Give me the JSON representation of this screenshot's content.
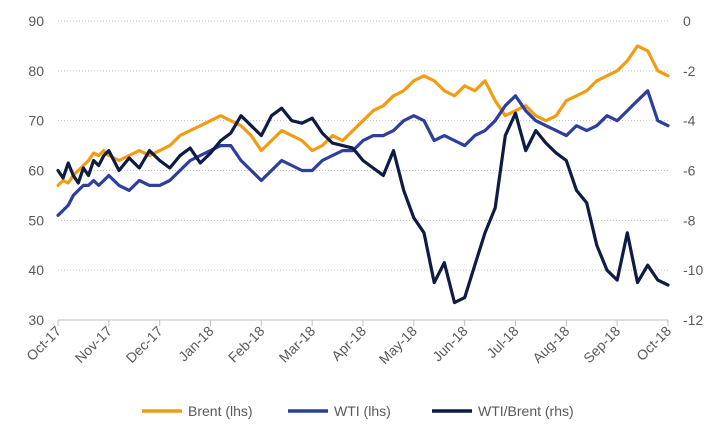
{
  "chart_data": {
    "type": "line",
    "grid": "horizontal dashed",
    "legend_position": "bottom",
    "y_left": {
      "min": 30,
      "max": 90,
      "ticks": [
        "30",
        "40",
        "50",
        "60",
        "70",
        "80",
        "90"
      ]
    },
    "y_right": {
      "min": -12,
      "max": 0,
      "ticks": [
        "-12",
        "-10",
        "-8",
        "-6",
        "-4",
        "-2",
        "0"
      ]
    },
    "x_ticks": [
      "Oct-17",
      "Nov-17",
      "Dec-17",
      "Jan-18",
      "Feb-18",
      "Mar-18",
      "Apr-18",
      "May-18",
      "Jun-18",
      "Jul-18",
      "Aug-18",
      "Sep-18",
      "Oct-18"
    ],
    "series": [
      {
        "name": "Brent (lhs)",
        "axis": "left",
        "color": "#F39C12",
        "x": [
          0,
          0.1,
          0.2,
          0.3,
          0.4,
          0.5,
          0.6,
          0.7,
          0.8,
          0.9,
          1,
          1.2,
          1.4,
          1.6,
          1.8,
          2,
          2.2,
          2.4,
          2.6,
          2.8,
          3,
          3.2,
          3.4,
          3.6,
          3.8,
          4,
          4.2,
          4.4,
          4.6,
          4.8,
          5,
          5.2,
          5.4,
          5.6,
          5.8,
          6,
          6.2,
          6.4,
          6.6,
          6.8,
          7,
          7.2,
          7.4,
          7.6,
          7.8,
          8,
          8.2,
          8.4,
          8.6,
          8.8,
          9,
          9.2,
          9.4,
          9.6,
          9.8,
          10,
          10.2,
          10.4,
          10.6,
          10.8,
          11,
          11.2,
          11.4,
          11.6,
          11.8,
          12
        ],
        "values": [
          57,
          58,
          57.5,
          59,
          60,
          61,
          62,
          63.5,
          63,
          64,
          63,
          62,
          63,
          64,
          63,
          64,
          65,
          67,
          68,
          69,
          70,
          71,
          70,
          69,
          67,
          64,
          66,
          68,
          67,
          66,
          64,
          65,
          67,
          66,
          68,
          70,
          72,
          73,
          75,
          76,
          78,
          79,
          78,
          76,
          75,
          77,
          76,
          78,
          74,
          71,
          72,
          73,
          71,
          70,
          71,
          74,
          75,
          76,
          78,
          79,
          80,
          82,
          85,
          84,
          80,
          79
        ]
      },
      {
        "name": "WTI (lhs)",
        "axis": "left",
        "color": "#2C3E9E",
        "x": [
          0,
          0.1,
          0.2,
          0.3,
          0.4,
          0.5,
          0.6,
          0.7,
          0.8,
          0.9,
          1,
          1.2,
          1.4,
          1.6,
          1.8,
          2,
          2.2,
          2.4,
          2.6,
          2.8,
          3,
          3.2,
          3.4,
          3.6,
          3.8,
          4,
          4.2,
          4.4,
          4.6,
          4.8,
          5,
          5.2,
          5.4,
          5.6,
          5.8,
          6,
          6.2,
          6.4,
          6.6,
          6.8,
          7,
          7.2,
          7.4,
          7.6,
          7.8,
          8,
          8.2,
          8.4,
          8.6,
          8.8,
          9,
          9.2,
          9.4,
          9.6,
          9.8,
          10,
          10.2,
          10.4,
          10.6,
          10.8,
          11,
          11.2,
          11.4,
          11.6,
          11.8,
          12
        ],
        "values": [
          51,
          52,
          53,
          55,
          56,
          57,
          57,
          58,
          57,
          58,
          59,
          57,
          56,
          58,
          57,
          57,
          58,
          60,
          62,
          63,
          64,
          65,
          65,
          62,
          60,
          58,
          60,
          62,
          61,
          60,
          60,
          62,
          63,
          64,
          64,
          66,
          67,
          67,
          68,
          70,
          71,
          70,
          66,
          67,
          66,
          65,
          67,
          68,
          70,
          73,
          75,
          72,
          70,
          69,
          68,
          67,
          69,
          68,
          69,
          71,
          70,
          72,
          74,
          76,
          70,
          69
        ]
      },
      {
        "name": "WTI/Brent (rhs)",
        "axis": "right",
        "color": "#0F1B45",
        "x": [
          0,
          0.1,
          0.2,
          0.3,
          0.4,
          0.5,
          0.6,
          0.7,
          0.8,
          0.9,
          1,
          1.2,
          1.4,
          1.6,
          1.8,
          2,
          2.2,
          2.4,
          2.6,
          2.8,
          3,
          3.2,
          3.4,
          3.6,
          3.8,
          4,
          4.2,
          4.4,
          4.6,
          4.8,
          5,
          5.2,
          5.4,
          5.6,
          5.8,
          6,
          6.2,
          6.4,
          6.6,
          6.8,
          7,
          7.2,
          7.4,
          7.6,
          7.8,
          8,
          8.2,
          8.4,
          8.6,
          8.8,
          9,
          9.2,
          9.4,
          9.6,
          9.8,
          10,
          10.2,
          10.4,
          10.6,
          10.8,
          11,
          11.2,
          11.4,
          11.6,
          11.8,
          12
        ],
        "values": [
          -6,
          -6.3,
          -5.7,
          -6.2,
          -6.5,
          -5.9,
          -6.2,
          -5.6,
          -5.8,
          -5.4,
          -5.2,
          -6,
          -5.5,
          -5.9,
          -5.2,
          -5.6,
          -5.9,
          -5.4,
          -5.1,
          -5.7,
          -5.3,
          -4.8,
          -4.5,
          -3.8,
          -4.2,
          -4.6,
          -3.8,
          -3.5,
          -4,
          -4.1,
          -3.9,
          -4.5,
          -4.9,
          -5,
          -5.1,
          -5.6,
          -5.9,
          -6.2,
          -5.2,
          -6.8,
          -7.9,
          -8.5,
          -10.5,
          -9.7,
          -11.3,
          -11.1,
          -9.8,
          -8.5,
          -7.5,
          -4.6,
          -3.7,
          -5.2,
          -4.4,
          -4.9,
          -5.3,
          -5.6,
          -6.8,
          -7.3,
          -9,
          -10,
          -10.4,
          -8.5,
          -10.5,
          -9.8,
          -10.4,
          -10.6
        ]
      }
    ]
  }
}
